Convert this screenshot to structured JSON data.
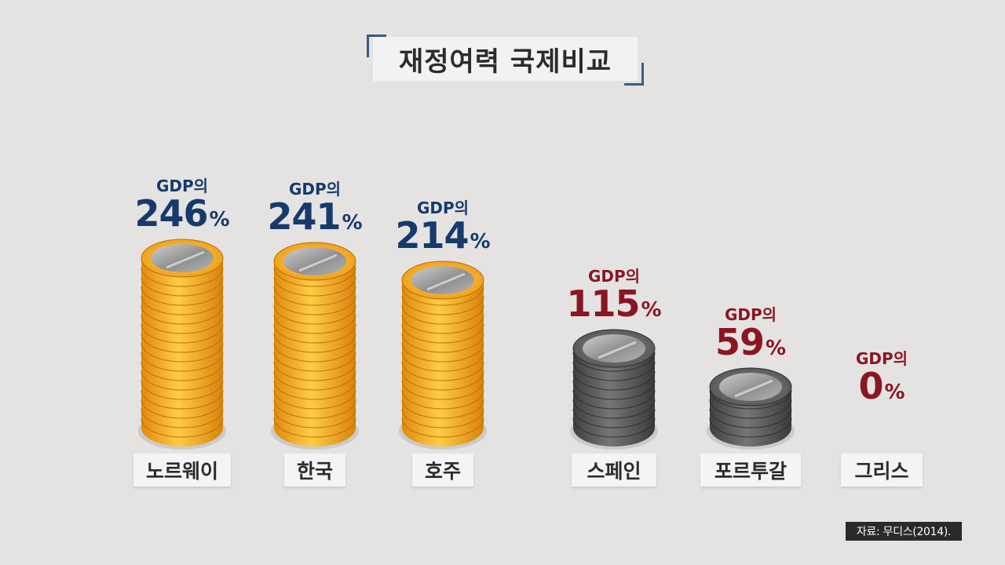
{
  "title": "재정여력 국제비교",
  "source": "자료: 무디스(2014).",
  "chart_data": {
    "type": "bar",
    "categories": [
      "노르웨이",
      "한국",
      "호주",
      "스페인",
      "포르투갈",
      "그리스"
    ],
    "values": [
      246,
      241,
      214,
      115,
      59,
      0
    ],
    "value_prefix": "GDP의",
    "value_suffix": "%",
    "colors": {
      "positive": "#163a6b",
      "negative": "#8a1621",
      "gold": "#f2a92a",
      "gray": "#616161"
    }
  }
}
